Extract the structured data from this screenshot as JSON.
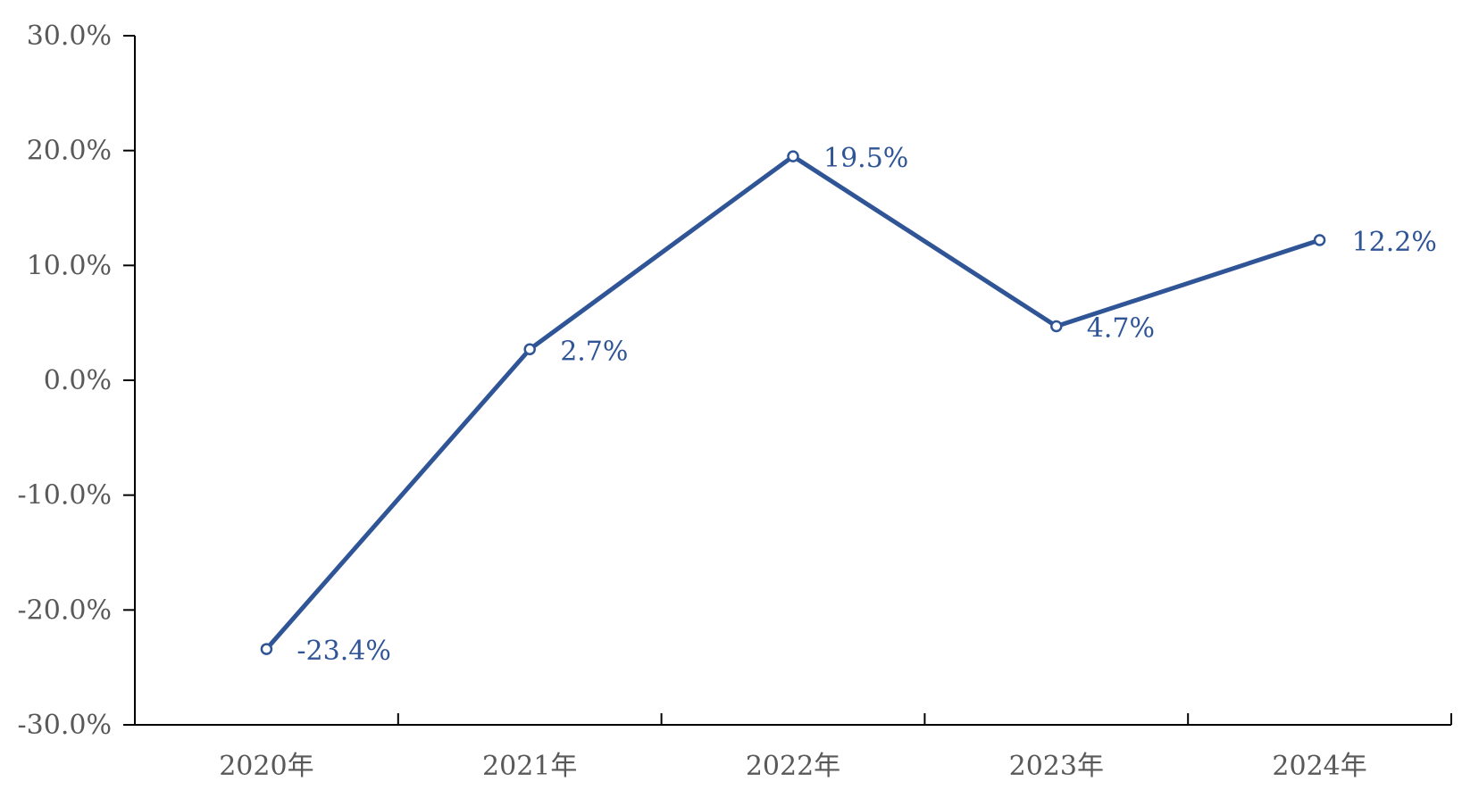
{
  "chart_data": {
    "type": "line",
    "title": "",
    "xlabel": "",
    "ylabel": "",
    "categories": [
      "2020年",
      "2021年",
      "2022年",
      "2023年",
      "2024年"
    ],
    "series": [
      {
        "values": [
          -23.4,
          2.7,
          19.5,
          4.7,
          12.2
        ],
        "labels": [
          "-23.4%",
          "2.7%",
          "19.5%",
          "4.7%",
          "12.2%"
        ],
        "color": "#2F5597"
      }
    ],
    "ylim": [
      -30,
      30
    ],
    "yticks": [
      30,
      20,
      10,
      0,
      -10,
      -20,
      -30
    ],
    "ytick_labels": [
      "30.0%",
      "20.0%",
      "10.0%",
      "0.0%",
      "-10.0%",
      "-20.0%",
      "-30.0%"
    ],
    "grid": false,
    "legend": "none",
    "colors": {
      "line": "#2F5597",
      "axis": "#000000",
      "tick_text": "#595959"
    }
  }
}
